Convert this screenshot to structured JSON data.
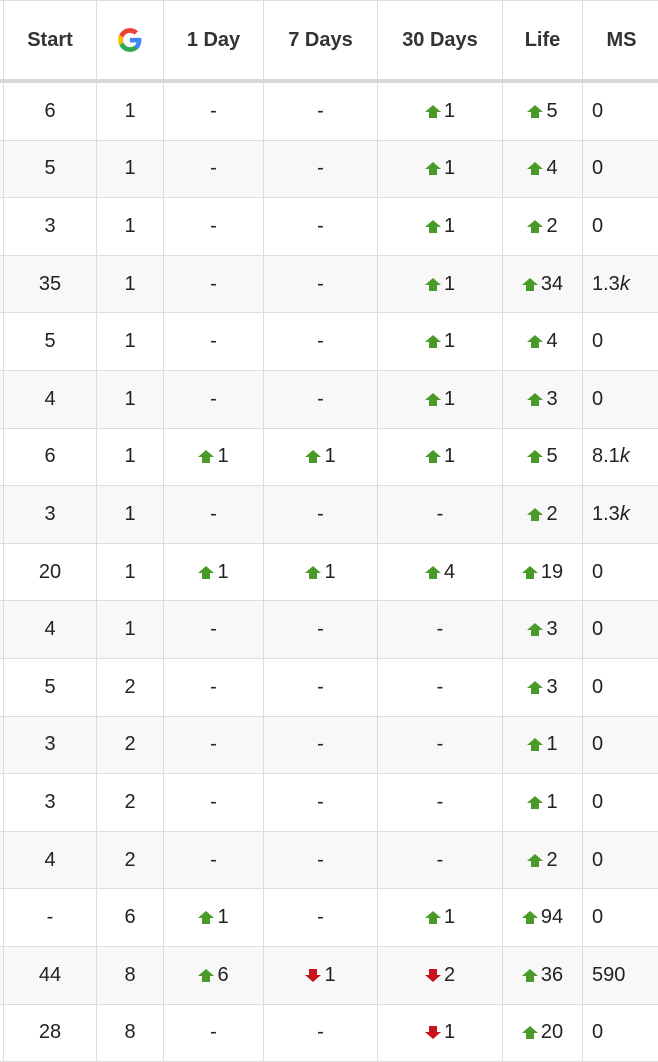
{
  "colors": {
    "up": "#4a9a2a",
    "down": "#c8141c",
    "header_text": "#333333",
    "border": "#dcdcdc"
  },
  "headers": {
    "start": "Start",
    "google": "google-g-icon",
    "day1": "1 Day",
    "days7": "7 Days",
    "days30": "30 Days",
    "life": "Life",
    "ms": "MS"
  },
  "rows": [
    {
      "start": "6",
      "google": "1",
      "day1": "-",
      "days7": "-",
      "days30": "up 1",
      "life": "up 5",
      "ms": "0"
    },
    {
      "start": "5",
      "google": "1",
      "day1": "-",
      "days7": "-",
      "days30": "up 1",
      "life": "up 4",
      "ms": "0"
    },
    {
      "start": "3",
      "google": "1",
      "day1": "-",
      "days7": "-",
      "days30": "up 1",
      "life": "up 2",
      "ms": "0"
    },
    {
      "start": "35",
      "google": "1",
      "day1": "-",
      "days7": "-",
      "days30": "up 1",
      "life": "up 34",
      "ms": "1.3k"
    },
    {
      "start": "5",
      "google": "1",
      "day1": "-",
      "days7": "-",
      "days30": "up 1",
      "life": "up 4",
      "ms": "0"
    },
    {
      "start": "4",
      "google": "1",
      "day1": "-",
      "days7": "-",
      "days30": "up 1",
      "life": "up 3",
      "ms": "0"
    },
    {
      "start": "6",
      "google": "1",
      "day1": "up 1",
      "days7": "up 1",
      "days30": "up 1",
      "life": "up 5",
      "ms": "8.1k"
    },
    {
      "start": "3",
      "google": "1",
      "day1": "-",
      "days7": "-",
      "days30": "-",
      "life": "up 2",
      "ms": "1.3k"
    },
    {
      "start": "20",
      "google": "1",
      "day1": "up 1",
      "days7": "up 1",
      "days30": "up 4",
      "life": "up 19",
      "ms": "0"
    },
    {
      "start": "4",
      "google": "1",
      "day1": "-",
      "days7": "-",
      "days30": "-",
      "life": "up 3",
      "ms": "0"
    },
    {
      "start": "5",
      "google": "2",
      "day1": "-",
      "days7": "-",
      "days30": "-",
      "life": "up 3",
      "ms": "0"
    },
    {
      "start": "3",
      "google": "2",
      "day1": "-",
      "days7": "-",
      "days30": "-",
      "life": "up 1",
      "ms": "0"
    },
    {
      "start": "3",
      "google": "2",
      "day1": "-",
      "days7": "-",
      "days30": "-",
      "life": "up 1",
      "ms": "0"
    },
    {
      "start": "4",
      "google": "2",
      "day1": "-",
      "days7": "-",
      "days30": "-",
      "life": "up 2",
      "ms": "0"
    },
    {
      "start": "-",
      "google": "6",
      "day1": "up 1",
      "days7": "-",
      "days30": "up 1",
      "life": "up 94",
      "ms": "0"
    },
    {
      "start": "44",
      "google": "8",
      "day1": "up 6",
      "days7": "down 1",
      "days30": "down 2",
      "life": "up 36",
      "ms": "590"
    },
    {
      "start": "28",
      "google": "8",
      "day1": "-",
      "days7": "-",
      "days30": "down 1",
      "life": "up 20",
      "ms": "0"
    }
  ]
}
